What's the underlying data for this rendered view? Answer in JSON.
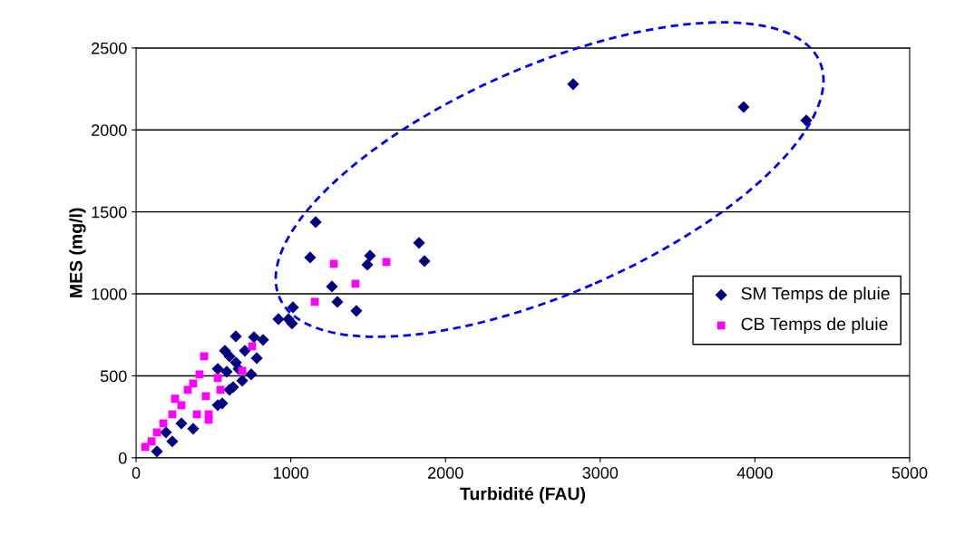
{
  "chart_data": {
    "type": "scatter",
    "xlabel": "Turbidité (FAU)",
    "ylabel": "MES (mg/l)",
    "xlim": [
      0,
      5000
    ],
    "xticks": [
      0,
      1000,
      2000,
      3000,
      4000,
      5000
    ],
    "ylim": [
      0,
      2500
    ],
    "yticks": [
      0,
      500,
      1000,
      1500,
      2000,
      2500
    ],
    "grid": "y",
    "legend": "right",
    "series": [
      {
        "name": "SM Temps de pluie",
        "color": "#000080",
        "marker": "diamond",
        "x": [
          2825,
          3927,
          4332,
          1161,
          1125,
          1512,
          1495,
          1829,
          1864,
          1266,
          1301,
          1424,
          1014,
          920,
          1008,
          985,
          645,
          762,
          821,
          574,
          645,
          780,
          744,
          557,
          135,
          369,
          234,
          627,
          586,
          686,
          528,
          193,
          293,
          528,
          604,
          662,
          703,
          604
        ],
        "values": [
          2279,
          2140,
          2058,
          1438,
          1222,
          1233,
          1178,
          1311,
          1200,
          1045,
          951,
          896,
          918,
          846,
          819,
          846,
          741,
          736,
          719,
          653,
          581,
          608,
          509,
          332,
          39,
          177,
          100,
          431,
          525,
          470,
          542,
          155,
          210,
          321,
          415,
          542,
          653,
          619
        ]
      },
      {
        "name": "CB Temps de pluie",
        "color": "#ff00ff",
        "marker": "square",
        "x": [
          1278,
          1618,
          1418,
          1155,
          440,
          750,
          686,
          59,
          528,
          469,
          135,
          234,
          334,
          410,
          451,
          293,
          393,
          176,
          100,
          469,
          545,
          369,
          252
        ],
        "values": [
          1184,
          1195,
          1062,
          951,
          619,
          680,
          531,
          66,
          487,
          232,
          155,
          265,
          415,
          509,
          376,
          321,
          265,
          210,
          100,
          265,
          415,
          453,
          360
        ]
      }
    ]
  }
}
